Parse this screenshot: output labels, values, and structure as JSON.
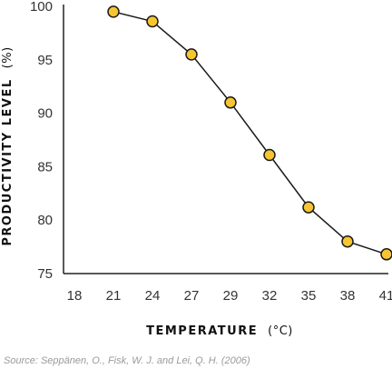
{
  "chart_data": {
    "type": "line",
    "title": "",
    "xlabel": "TEMPERATURE",
    "xlabel_unit": "(°C)",
    "ylabel": "PRODUCTIVITY LEVEL",
    "ylabel_unit": "(%)",
    "x_ticks": [
      "18",
      "21",
      "24",
      "27",
      "29",
      "32",
      "35",
      "38",
      "41"
    ],
    "y_ticks": [
      "75",
      "80",
      "85",
      "90",
      "95",
      "100"
    ],
    "ylim": [
      75,
      100
    ],
    "grid": false,
    "legend": "none",
    "series": [
      {
        "categories": [
          "21",
          "24",
          "27",
          "29",
          "32",
          "35",
          "38",
          "41"
        ],
        "values": [
          99.5,
          98.6,
          95.5,
          91.0,
          86.1,
          81.2,
          78.0,
          76.8
        ]
      }
    ],
    "colors": {
      "marker_fill": "#F6C531",
      "marker_stroke": "#1a1a1a",
      "line": "#1a1a1a",
      "axis": "#222222"
    }
  },
  "source": "Source: Seppänen, O., Fisk, W. J. and Lei, Q. H. (2006)"
}
